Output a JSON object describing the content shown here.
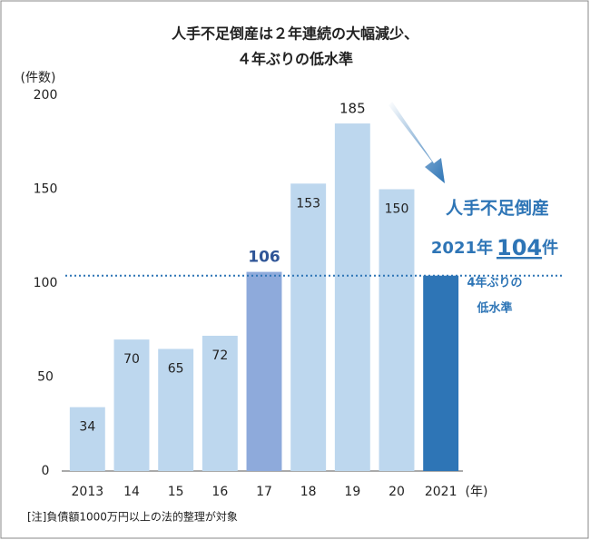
{
  "chart_data": {
    "type": "bar",
    "title_lines": [
      "人手不足倒産は２年連続の大幅減少、",
      "４年ぶりの低水準"
    ],
    "y_label": "(件数)",
    "x_label": "(年)",
    "categories": [
      "2013",
      "14",
      "15",
      "16",
      "17",
      "18",
      "19",
      "20",
      "2021"
    ],
    "values": [
      34,
      70,
      65,
      72,
      106,
      153,
      185,
      150,
      104
    ],
    "colors": [
      "#bdd7ee",
      "#bdd7ee",
      "#bdd7ee",
      "#bdd7ee",
      "#8eaadb",
      "#bdd7ee",
      "#bdd7ee",
      "#bdd7ee",
      "#2e75b6"
    ],
    "label_position": [
      "inside",
      "inside",
      "inside",
      "inside",
      "above",
      "inside",
      "above",
      "inside",
      null
    ],
    "label_style": [
      "normal",
      "normal",
      "normal",
      "normal",
      "bold",
      "normal",
      "normal",
      "normal",
      null
    ],
    "ylim": [
      0,
      200
    ],
    "yticks": [
      0,
      50,
      100,
      150,
      200
    ],
    "grid": false,
    "reference_line_index": 8,
    "annotation": {
      "heading": "人手不足倒産",
      "year": "2021年",
      "unit": "件",
      "note_lines": [
        "4年ぶりの",
        "低水準"
      ]
    },
    "footnote": "[注]負債額1000万円以上の法的整理が対象"
  }
}
